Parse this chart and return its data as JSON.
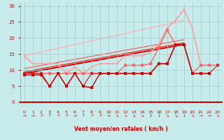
{
  "bg_color": "#c8ecec",
  "grid_color": "#99cccc",
  "xlabel": "Vent moyen/en rafales ( km/h )",
  "ylim": [
    0,
    31
  ],
  "xlim": [
    -0.5,
    23.5
  ],
  "yticks": [
    0,
    5,
    10,
    15,
    20,
    25,
    30
  ],
  "xticks": [
    0,
    1,
    2,
    3,
    4,
    5,
    6,
    7,
    8,
    9,
    10,
    11,
    12,
    13,
    14,
    15,
    16,
    17,
    18,
    19,
    20,
    21,
    22,
    23
  ],
  "line_dark1": {
    "x": [
      0,
      1,
      2,
      3,
      4,
      5,
      6,
      7,
      8,
      9,
      10,
      11,
      12,
      13,
      14,
      15,
      16,
      17,
      18,
      19,
      20,
      21,
      22
    ],
    "y": [
      8.5,
      8.5,
      8.5,
      5.0,
      9.0,
      5.0,
      9.0,
      5.0,
      4.5,
      9.0,
      9.0,
      9.0,
      9.0,
      9.0,
      9.0,
      9.0,
      12.0,
      12.0,
      18.0,
      18.0,
      9.0,
      9.0,
      9.0
    ],
    "color": "#cc0000",
    "lw": 1.0,
    "ms": 2.5
  },
  "line_dark2": {
    "x": [
      0,
      1,
      2,
      3,
      4,
      5,
      6,
      7,
      8,
      9,
      10,
      11,
      12,
      13,
      14,
      15,
      16,
      17,
      18,
      19,
      20,
      21,
      22,
      23
    ],
    "y": [
      9.0,
      9.0,
      9.0,
      5.0,
      9.0,
      5.0,
      9.0,
      5.0,
      9.0,
      9.0,
      9.0,
      9.0,
      9.0,
      9.0,
      9.0,
      9.0,
      12.0,
      12.0,
      18.0,
      18.0,
      9.0,
      9.0,
      9.0,
      11.5
    ],
    "color": "#dd2222",
    "lw": 0.9,
    "ms": 2.2
  },
  "line_med": {
    "x": [
      0,
      1,
      2,
      3,
      4,
      5,
      6,
      7,
      8,
      9,
      10,
      11,
      12,
      13,
      14,
      15,
      16,
      17,
      18,
      19,
      20,
      21,
      22,
      23
    ],
    "y": [
      9.0,
      9.0,
      9.0,
      9.0,
      9.0,
      9.0,
      9.0,
      9.0,
      9.0,
      9.0,
      9.0,
      9.0,
      11.5,
      11.5,
      11.5,
      12.0,
      17.0,
      22.5,
      18.0,
      18.0,
      9.0,
      11.5,
      11.5,
      11.5
    ],
    "color": "#ff6666",
    "lw": 1.0,
    "ms": 2.2
  },
  "line_light1": {
    "x": [
      0,
      1,
      2,
      3,
      4,
      5,
      6,
      7,
      8,
      9,
      10,
      11,
      12,
      13,
      14,
      15,
      16,
      17,
      18,
      19,
      20,
      21,
      22,
      23
    ],
    "y": [
      14.5,
      12.0,
      12.0,
      12.0,
      12.0,
      9.0,
      11.0,
      9.0,
      11.0,
      12.0,
      12.0,
      12.0,
      14.5,
      14.5,
      14.5,
      15.5,
      18.0,
      23.0,
      25.5,
      29.0,
      23.0,
      11.5,
      11.5,
      11.5
    ],
    "color": "#ff9999",
    "lw": 1.0,
    "ms": 2.0
  },
  "line_light2": {
    "x": [
      0,
      1,
      2,
      3,
      4,
      5,
      6,
      7,
      8,
      9,
      10,
      11,
      12,
      13,
      14,
      15,
      16,
      17,
      18,
      19,
      20,
      21,
      22,
      23
    ],
    "y": [
      14.5,
      12.0,
      12.0,
      12.0,
      12.0,
      9.0,
      11.0,
      9.0,
      11.0,
      12.0,
      12.0,
      12.0,
      14.5,
      14.5,
      14.5,
      15.5,
      18.0,
      23.0,
      25.5,
      29.0,
      23.0,
      11.5,
      11.5,
      11.5
    ],
    "color": "#ffbbbb",
    "lw": 0.8,
    "ms": 1.8
  },
  "trend_lines": [
    {
      "x": [
        0,
        19
      ],
      "y": [
        9.0,
        18.0
      ],
      "color": "#cc0000",
      "lw": 1.4
    },
    {
      "x": [
        0,
        19
      ],
      "y": [
        9.5,
        18.5
      ],
      "color": "#dd3333",
      "lw": 1.0
    },
    {
      "x": [
        0,
        19
      ],
      "y": [
        10.5,
        19.5
      ],
      "color": "#ee6666",
      "lw": 0.9
    },
    {
      "x": [
        0,
        19
      ],
      "y": [
        14.5,
        25.5
      ],
      "color": "#ffaaaa",
      "lw": 0.8
    }
  ],
  "arrows": [
    "→",
    "→",
    "↗",
    "↑",
    "↗",
    "↗",
    "→",
    "↑",
    "↗",
    "↗",
    "→",
    "↘",
    "↘",
    "↘",
    "↘",
    "↓",
    "↓",
    "↘",
    "↘",
    "↓",
    "↘",
    "→",
    "→",
    "↘"
  ]
}
